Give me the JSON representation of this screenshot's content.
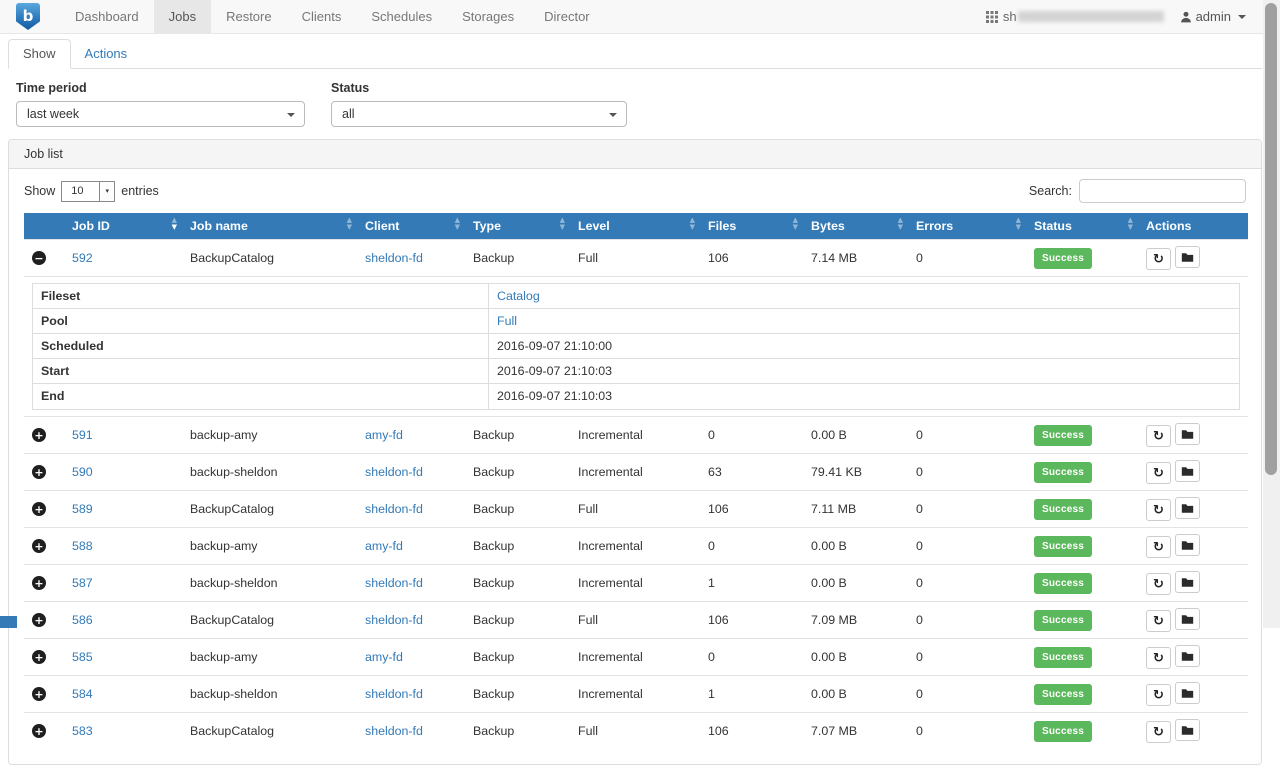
{
  "navbar": {
    "brand_letter": "b",
    "items": [
      {
        "label": "Dashboard",
        "active": false
      },
      {
        "label": "Jobs",
        "active": true
      },
      {
        "label": "Restore",
        "active": false
      },
      {
        "label": "Clients",
        "active": false
      },
      {
        "label": "Schedules",
        "active": false
      },
      {
        "label": "Storages",
        "active": false
      },
      {
        "label": "Director",
        "active": false
      }
    ],
    "host_prefix": "sh",
    "user": "admin"
  },
  "tabs": [
    {
      "label": "Show",
      "active": true
    },
    {
      "label": "Actions",
      "active": false
    }
  ],
  "filters": {
    "time_period": {
      "label": "Time period",
      "value": "last week"
    },
    "status": {
      "label": "Status",
      "value": "all"
    }
  },
  "job_list": {
    "title": "Job list",
    "length": {
      "prefix": "Show",
      "value": "10",
      "suffix": "entries"
    },
    "search_label": "Search:",
    "search_value": ""
  },
  "table": {
    "columns": [
      {
        "label": "",
        "sortable": false
      },
      {
        "label": "Job ID",
        "sortable": true,
        "sorted": "desc"
      },
      {
        "label": "Job name",
        "sortable": true
      },
      {
        "label": "Client",
        "sortable": true
      },
      {
        "label": "Type",
        "sortable": true
      },
      {
        "label": "Level",
        "sortable": true
      },
      {
        "label": "Files",
        "sortable": true
      },
      {
        "label": "Bytes",
        "sortable": true
      },
      {
        "label": "Errors",
        "sortable": true
      },
      {
        "label": "Status",
        "sortable": true
      },
      {
        "label": "Actions",
        "sortable": false
      }
    ],
    "rows": [
      {
        "id": "592",
        "name": "BackupCatalog",
        "client": "sheldon-fd",
        "type": "Backup",
        "level": "Full",
        "files": "106",
        "bytes": "7.14 MB",
        "errors": "0",
        "status": "Success",
        "expanded": true
      },
      {
        "id": "591",
        "name": "backup-amy",
        "client": "amy-fd",
        "type": "Backup",
        "level": "Incremental",
        "files": "0",
        "bytes": "0.00 B",
        "errors": "0",
        "status": "Success",
        "expanded": false
      },
      {
        "id": "590",
        "name": "backup-sheldon",
        "client": "sheldon-fd",
        "type": "Backup",
        "level": "Incremental",
        "files": "63",
        "bytes": "79.41 KB",
        "errors": "0",
        "status": "Success",
        "expanded": false
      },
      {
        "id": "589",
        "name": "BackupCatalog",
        "client": "sheldon-fd",
        "type": "Backup",
        "level": "Full",
        "files": "106",
        "bytes": "7.11 MB",
        "errors": "0",
        "status": "Success",
        "expanded": false
      },
      {
        "id": "588",
        "name": "backup-amy",
        "client": "amy-fd",
        "type": "Backup",
        "level": "Incremental",
        "files": "0",
        "bytes": "0.00 B",
        "errors": "0",
        "status": "Success",
        "expanded": false
      },
      {
        "id": "587",
        "name": "backup-sheldon",
        "client": "sheldon-fd",
        "type": "Backup",
        "level": "Incremental",
        "files": "1",
        "bytes": "0.00 B",
        "errors": "0",
        "status": "Success",
        "expanded": false
      },
      {
        "id": "586",
        "name": "BackupCatalog",
        "client": "sheldon-fd",
        "type": "Backup",
        "level": "Full",
        "files": "106",
        "bytes": "7.09 MB",
        "errors": "0",
        "status": "Success",
        "expanded": false
      },
      {
        "id": "585",
        "name": "backup-amy",
        "client": "amy-fd",
        "type": "Backup",
        "level": "Incremental",
        "files": "0",
        "bytes": "0.00 B",
        "errors": "0",
        "status": "Success",
        "expanded": false
      },
      {
        "id": "584",
        "name": "backup-sheldon",
        "client": "sheldon-fd",
        "type": "Backup",
        "level": "Incremental",
        "files": "1",
        "bytes": "0.00 B",
        "errors": "0",
        "status": "Success",
        "expanded": false
      },
      {
        "id": "583",
        "name": "BackupCatalog",
        "client": "sheldon-fd",
        "type": "Backup",
        "level": "Full",
        "files": "106",
        "bytes": "7.07 MB",
        "errors": "0",
        "status": "Success",
        "expanded": false
      }
    ],
    "expanded_job_detail": {
      "job_id": "592",
      "fields": [
        {
          "label": "Fileset",
          "value": "Catalog",
          "is_link": true
        },
        {
          "label": "Pool",
          "value": "Full",
          "is_link": true
        },
        {
          "label": "Scheduled",
          "value": "2016-09-07 21:10:00",
          "is_link": false
        },
        {
          "label": "Start",
          "value": "2016-09-07 21:10:03",
          "is_link": false
        },
        {
          "label": "End",
          "value": "2016-09-07 21:10:03",
          "is_link": false
        }
      ]
    }
  },
  "icons": {
    "brand": "baculum-shield-icon",
    "apps": "grid-icon",
    "user": "person-icon",
    "caret": "caret-down-icon",
    "sort": "sort-arrows-icon",
    "expand": "plus-circle-icon",
    "collapse": "minus-circle-icon",
    "restart": "restart-icon",
    "folder": "folder-icon"
  },
  "glyphs": {
    "expand": "+",
    "collapse": "−",
    "restart": "↻",
    "sort_up": "▲",
    "sort_down": "▼",
    "length_caret": "▾"
  },
  "colors": {
    "header_blue": "#337ab7",
    "success_green": "#5cb85c",
    "link_blue": "#337ab7",
    "navbar_bg": "#f8f8f8",
    "active_nav_bg": "#e7e7e7"
  }
}
